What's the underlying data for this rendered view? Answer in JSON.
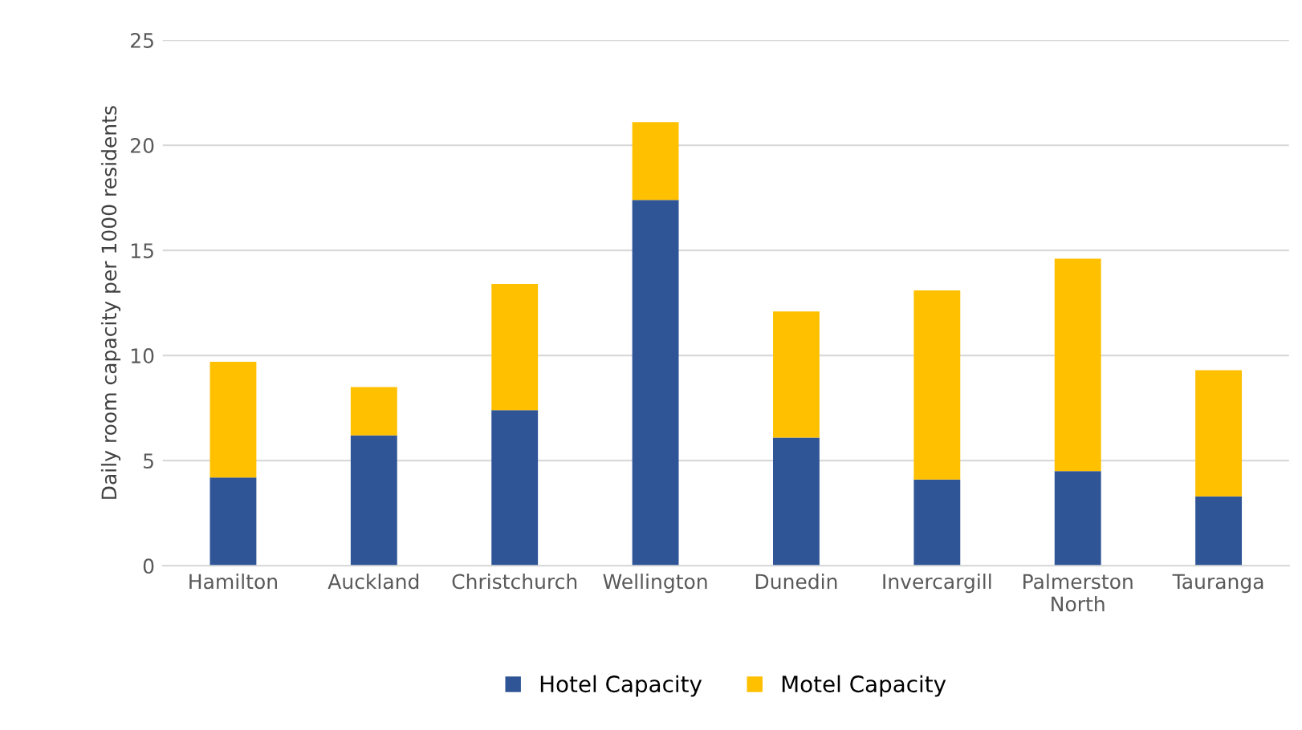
{
  "chart_data": {
    "type": "bar",
    "stacked": true,
    "ylabel": "Daily room capacity per 1000 residents",
    "categories": [
      "Hamilton",
      "Auckland",
      "Christchurch",
      "Wellington",
      "Dunedin",
      "Invercargill",
      "Palmerston\nNorth",
      "Tauranga"
    ],
    "series": [
      {
        "name": "Hotel Capacity",
        "color": "#2f5597",
        "values": [
          4.2,
          6.2,
          7.4,
          17.4,
          6.1,
          4.1,
          4.5,
          3.3
        ]
      },
      {
        "name": "Motel Capacity",
        "color": "#ffc000",
        "values": [
          5.5,
          2.3,
          6.0,
          3.7,
          6.0,
          9.0,
          10.1,
          6.0
        ]
      }
    ],
    "ylim": [
      0,
      25
    ],
    "yticks": [
      0,
      5,
      10,
      15,
      20,
      25
    ],
    "grid": "y",
    "legend": "bottom"
  }
}
